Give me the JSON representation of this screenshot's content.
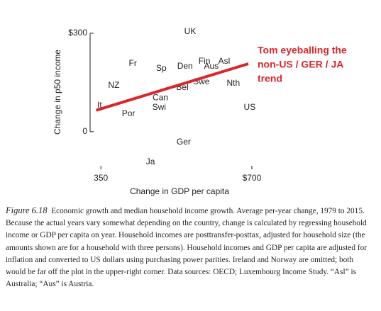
{
  "chart_data": {
    "type": "scatter",
    "xlabel": "Change in GDP per capita",
    "ylabel": "Change in p50 income",
    "xlim": [
      325,
      710
    ],
    "ylim": [
      -115,
      315
    ],
    "xticks": [
      350,
      {
        "value": 700,
        "label": "$700"
      }
    ],
    "yticks": [
      {
        "value": 300,
        "label": "$300"
      },
      0
    ],
    "color": "#222222",
    "points": [
      {
        "label": "UK",
        "x": 557,
        "y": 305
      },
      {
        "label": "Fr",
        "x": 424,
        "y": 207
      },
      {
        "label": "Sp",
        "x": 490,
        "y": 192
      },
      {
        "label": "Den",
        "x": 545,
        "y": 199
      },
      {
        "label": "Fin",
        "x": 590,
        "y": 214
      },
      {
        "label": "Aus",
        "x": 606,
        "y": 199
      },
      {
        "label": "Asl",
        "x": 636,
        "y": 214
      },
      {
        "label": "NZ",
        "x": 380,
        "y": 140
      },
      {
        "label": "Bel",
        "x": 539,
        "y": 134
      },
      {
        "label": "Swe",
        "x": 583,
        "y": 151
      },
      {
        "label": "Nth",
        "x": 657,
        "y": 147
      },
      {
        "label": "Can",
        "x": 488,
        "y": 102
      },
      {
        "label": "Swi",
        "x": 485,
        "y": 73
      },
      {
        "label": "It",
        "x": 347,
        "y": 80
      },
      {
        "label": "Por",
        "x": 414,
        "y": 54
      },
      {
        "label": "US",
        "x": 695,
        "y": 73
      },
      {
        "label": "Ger",
        "x": 542,
        "y": -32
      },
      {
        "label": "Ja",
        "x": 465,
        "y": -93
      }
    ],
    "trend_line": {
      "x": [
        339,
        692
      ],
      "y": [
        65,
        207
      ],
      "color": "#d9262b"
    },
    "annotation": {
      "lines": [
        "Tom eyeballing the",
        "non-US / GER / JA",
        "trend"
      ],
      "color": "#d9262b"
    }
  },
  "caption": {
    "label": "Figure 6.18",
    "text": "Economic growth and median household income growth. Average per-year change, 1979 to 2015. Because the actual years vary somewhat depending on the country, change is calculated by regressing household income or GDP per capita on year. Household incomes are posttransfer-posttax, adjusted for household size (the amounts shown are for a household with three persons). Household incomes and GDP per capita are adjusted for inflation and converted to US dollars using purchasing power parities. Ireland and Norway are omitted; both would be far off the plot in the upper-right corner. Data sources: OECD; Luxembourg Income Study. “Asl” is Australia; “Aus” is Austria."
  }
}
